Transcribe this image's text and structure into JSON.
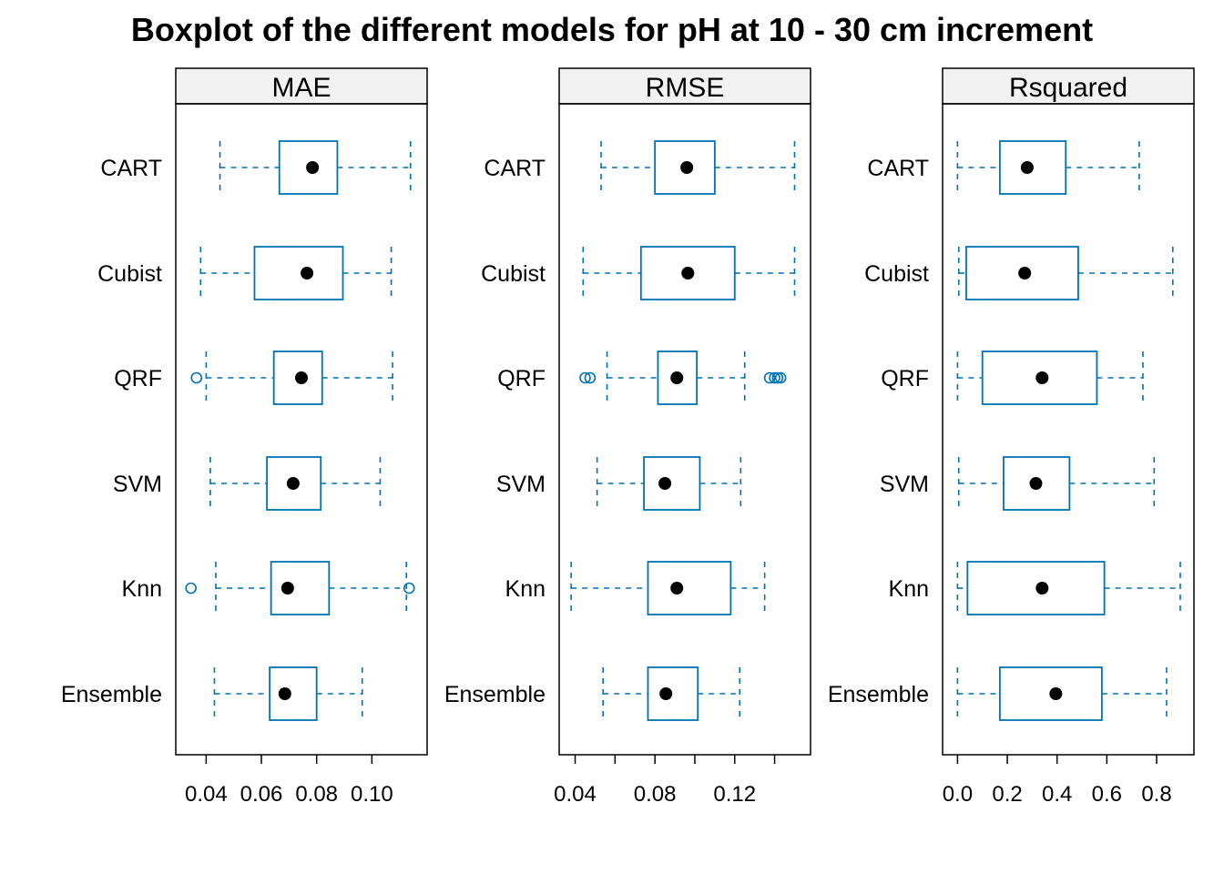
{
  "title": "Boxplot of the different models for pH at 10 - 30 cm increment",
  "colors": {
    "box": "#0072B2",
    "median": "#000000",
    "strip": "#F2F2F2",
    "frame": "#000000"
  },
  "chart_data": [
    {
      "type": "boxplot",
      "panel": "MAE",
      "categories": [
        "CART",
        "Cubist",
        "QRF",
        "SVM",
        "Knn",
        "Ensemble"
      ],
      "xlim": [
        0.029,
        0.12
      ],
      "xticks": [
        0.04,
        0.06,
        0.08,
        0.1
      ],
      "xtick_labels": [
        "0.04",
        "0.06",
        "0.08",
        "0.10"
      ],
      "boxes": [
        {
          "name": "CART",
          "min": 0.045,
          "q1": 0.0665,
          "median": 0.0785,
          "q3": 0.0875,
          "max": 0.114,
          "outliers": []
        },
        {
          "name": "Cubist",
          "min": 0.038,
          "q1": 0.0575,
          "median": 0.0765,
          "q3": 0.0895,
          "max": 0.107,
          "outliers": []
        },
        {
          "name": "QRF",
          "min": 0.04,
          "q1": 0.0645,
          "median": 0.0745,
          "q3": 0.082,
          "max": 0.1075,
          "outliers": [
            0.0365
          ]
        },
        {
          "name": "SVM",
          "min": 0.0415,
          "q1": 0.062,
          "median": 0.0715,
          "q3": 0.0815,
          "max": 0.103,
          "outliers": []
        },
        {
          "name": "Knn",
          "min": 0.0435,
          "q1": 0.0635,
          "median": 0.0695,
          "q3": 0.0845,
          "max": 0.1125,
          "outliers": [
            0.0345,
            0.1135
          ]
        },
        {
          "name": "Ensemble",
          "min": 0.043,
          "q1": 0.063,
          "median": 0.0685,
          "q3": 0.08,
          "max": 0.0965,
          "outliers": []
        }
      ]
    },
    {
      "type": "boxplot",
      "panel": "RMSE",
      "categories": [
        "CART",
        "Cubist",
        "QRF",
        "SVM",
        "Knn",
        "Ensemble"
      ],
      "xlim": [
        0.032,
        0.158
      ],
      "xticks": [
        0.04,
        0.06,
        0.08,
        0.1,
        0.12,
        0.14
      ],
      "xtick_labels": [
        "0.04",
        "",
        "0.08",
        "",
        "0.12",
        ""
      ],
      "boxes": [
        {
          "name": "CART",
          "min": 0.053,
          "q1": 0.08,
          "median": 0.096,
          "q3": 0.11,
          "max": 0.15,
          "outliers": []
        },
        {
          "name": "Cubist",
          "min": 0.044,
          "q1": 0.073,
          "median": 0.0965,
          "q3": 0.12,
          "max": 0.15,
          "outliers": []
        },
        {
          "name": "QRF",
          "min": 0.056,
          "q1": 0.0815,
          "median": 0.091,
          "q3": 0.101,
          "max": 0.125,
          "outliers": [
            0.045,
            0.0475,
            0.1375,
            0.14,
            0.1415,
            0.143
          ]
        },
        {
          "name": "SVM",
          "min": 0.051,
          "q1": 0.0745,
          "median": 0.085,
          "q3": 0.1025,
          "max": 0.123,
          "outliers": []
        },
        {
          "name": "Knn",
          "min": 0.038,
          "q1": 0.0765,
          "median": 0.091,
          "q3": 0.118,
          "max": 0.135,
          "outliers": []
        },
        {
          "name": "Ensemble",
          "min": 0.054,
          "q1": 0.0765,
          "median": 0.0855,
          "q3": 0.1015,
          "max": 0.1225,
          "outliers": []
        }
      ]
    },
    {
      "type": "boxplot",
      "panel": "Rsquared",
      "categories": [
        "CART",
        "Cubist",
        "QRF",
        "SVM",
        "Knn",
        "Ensemble"
      ],
      "xlim": [
        -0.06,
        0.95
      ],
      "xticks": [
        0.0,
        0.2,
        0.4,
        0.6,
        0.8
      ],
      "xtick_labels": [
        "0.0",
        "0.2",
        "0.4",
        "0.6",
        "0.8"
      ],
      "boxes": [
        {
          "name": "CART",
          "min": 0.0,
          "q1": 0.17,
          "median": 0.28,
          "q3": 0.435,
          "max": 0.73,
          "outliers": []
        },
        {
          "name": "Cubist",
          "min": 0.005,
          "q1": 0.035,
          "median": 0.27,
          "q3": 0.485,
          "max": 0.865,
          "outliers": []
        },
        {
          "name": "QRF",
          "min": 0.0,
          "q1": 0.1,
          "median": 0.34,
          "q3": 0.56,
          "max": 0.745,
          "outliers": []
        },
        {
          "name": "SVM",
          "min": 0.005,
          "q1": 0.185,
          "median": 0.315,
          "q3": 0.45,
          "max": 0.79,
          "outliers": []
        },
        {
          "name": "Knn",
          "min": 0.0,
          "q1": 0.04,
          "median": 0.34,
          "q3": 0.59,
          "max": 0.895,
          "outliers": []
        },
        {
          "name": "Ensemble",
          "min": 0.0,
          "q1": 0.17,
          "median": 0.395,
          "q3": 0.58,
          "max": 0.84,
          "outliers": []
        }
      ]
    }
  ]
}
